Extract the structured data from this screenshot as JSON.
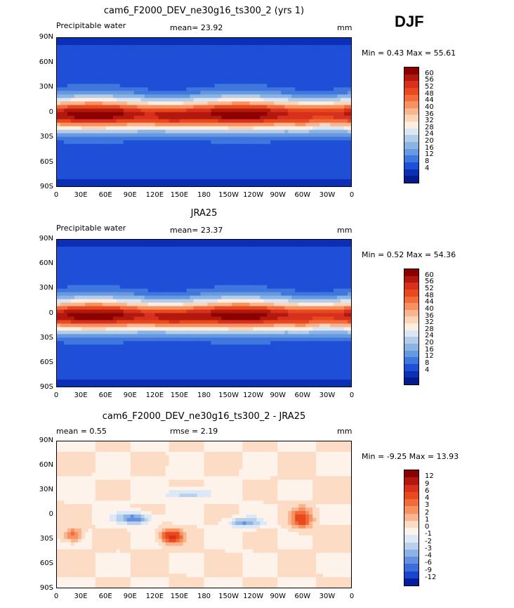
{
  "season": "DJF",
  "panels": [
    {
      "title": "cam6_F2000_DEV_ne30g16_ts300_2 (yrs 1)",
      "left_label": "Precipitable water",
      "center_label": "mean=  23.92",
      "units": "mm",
      "minmax": "Min =   0.43 Max =  55.61",
      "kind": "pw"
    },
    {
      "title": "JRA25",
      "left_label": "Precipitable water",
      "center_label": "mean=  23.37",
      "units": "mm",
      "minmax": "Min =   0.52 Max =  54.36",
      "kind": "pw"
    },
    {
      "title": "cam6_F2000_DEV_ne30g16_ts300_2 - JRA25",
      "left_label": "mean =   0.55",
      "center_label": "rmse =   2.19",
      "units": "mm",
      "minmax": "Min =  -9.25 Max =  13.93",
      "kind": "diff"
    }
  ],
  "lat_labels": [
    "90N",
    "60N",
    "30N",
    "0",
    "30S",
    "60S",
    "90S"
  ],
  "lon_labels": [
    "0",
    "30E",
    "60E",
    "90E",
    "120E",
    "150E",
    "180",
    "150W",
    "120W",
    "90W",
    "60W",
    "30W",
    "0"
  ],
  "colorbar_pw": {
    "labels": [
      "60",
      "56",
      "52",
      "48",
      "44",
      "40",
      "36",
      "32",
      "28",
      "24",
      "20",
      "16",
      "12",
      "8",
      "4"
    ],
    "colors": [
      "#8b0000",
      "#b2180e",
      "#d7301f",
      "#e8491d",
      "#f26b3c",
      "#f7915f",
      "#fab58e",
      "#fcd5b9",
      "#fdeee0",
      "#dbe6f5",
      "#b3cde9",
      "#8cb4e3",
      "#6699e0",
      "#3f77de",
      "#1f4fd6",
      "#0b2fb5",
      "#031b8c"
    ]
  },
  "colorbar_diff": {
    "labels": [
      "12",
      "9",
      "6",
      "4",
      "3",
      "2",
      "1",
      "0",
      "-1",
      "-2",
      "-3",
      "-4",
      "-6",
      "-9",
      "-12"
    ],
    "colors": [
      "#8b0000",
      "#b2180e",
      "#d7301f",
      "#e8491d",
      "#f26b3c",
      "#f7915f",
      "#fab58e",
      "#fcdcc5",
      "#fdf3ea",
      "#dce8f6",
      "#b7d0ec",
      "#8db3e4",
      "#6590df",
      "#3c6ddb",
      "#1a45cf",
      "#061e9c"
    ]
  }
}
